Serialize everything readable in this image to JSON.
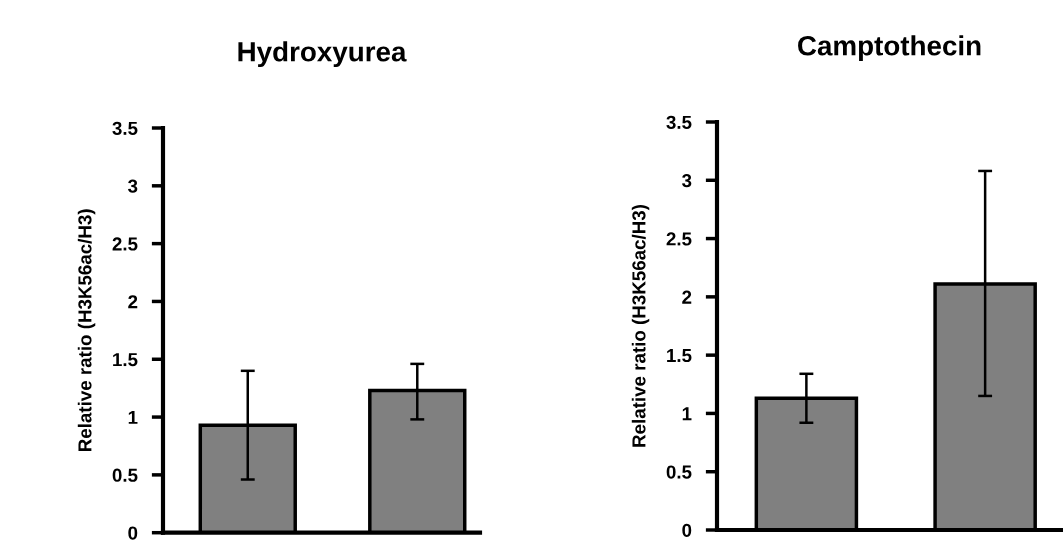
{
  "chart_data": [
    {
      "type": "bar",
      "title": "Hydroxyurea",
      "ylabel": "Relative ratio (H3K56ac/H3)",
      "categories": [
        null,
        null
      ],
      "values": [
        0.93,
        1.23
      ],
      "errors": [
        [
          0.46,
          1.4
        ],
        [
          0.98,
          1.46
        ]
      ],
      "color": "#808080",
      "ylim": [
        0,
        3.5
      ],
      "yticks": [
        0,
        0.5,
        1,
        1.5,
        2,
        2.5,
        3,
        3.5
      ],
      "grid": false
    },
    {
      "type": "bar",
      "title": "Camptothecin",
      "ylabel": "Relative ratio (H3K56ac/H3)",
      "categories": [
        null,
        null
      ],
      "values": [
        1.13,
        2.11
      ],
      "errors": [
        [
          0.92,
          1.34
        ],
        [
          1.15,
          3.08
        ]
      ],
      "color": "#808080",
      "ylim": [
        0,
        3.5
      ],
      "yticks": [
        0,
        0.5,
        1,
        1.5,
        2,
        2.5,
        3,
        3.5
      ],
      "grid": false
    }
  ]
}
